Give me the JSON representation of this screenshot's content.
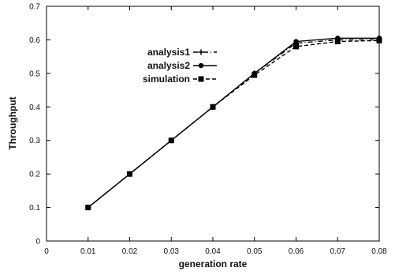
{
  "chart_data": {
    "type": "line",
    "title": "",
    "xlabel": "generation rate",
    "ylabel": "Throughput",
    "xlim": [
      0,
      0.08
    ],
    "ylim": [
      0,
      0.7
    ],
    "x_ticks": [
      "0",
      "0.01",
      "0.02",
      "0.03",
      "0.04",
      "0.05",
      "0.06",
      "0.07",
      "0.08"
    ],
    "y_ticks": [
      "0",
      "0.1",
      "0.2",
      "0.3",
      "0.4",
      "0.5",
      "0.6",
      "0.7"
    ],
    "grid": false,
    "legend_position": "upper-left",
    "series": [
      {
        "name": "analysis1",
        "style": "dash-dot",
        "marker": "plus",
        "x": [
          0.01,
          0.02,
          0.03,
          0.04,
          0.05,
          0.06,
          0.07,
          0.08
        ],
        "y": [
          0.1,
          0.2,
          0.3,
          0.4,
          0.5,
          0.59,
          0.6,
          0.6
        ]
      },
      {
        "name": "analysis2",
        "style": "solid",
        "marker": "filled-circle",
        "x": [
          0.01,
          0.02,
          0.03,
          0.04,
          0.05,
          0.06,
          0.07,
          0.08
        ],
        "y": [
          0.1,
          0.2,
          0.3,
          0.4,
          0.5,
          0.595,
          0.605,
          0.605
        ]
      },
      {
        "name": "simulation",
        "style": "dashed",
        "marker": "square",
        "x": [
          0.01,
          0.02,
          0.03,
          0.04,
          0.05,
          0.06,
          0.07,
          0.08
        ],
        "y": [
          0.1,
          0.2,
          0.3,
          0.4,
          0.495,
          0.58,
          0.595,
          0.598
        ]
      }
    ]
  }
}
